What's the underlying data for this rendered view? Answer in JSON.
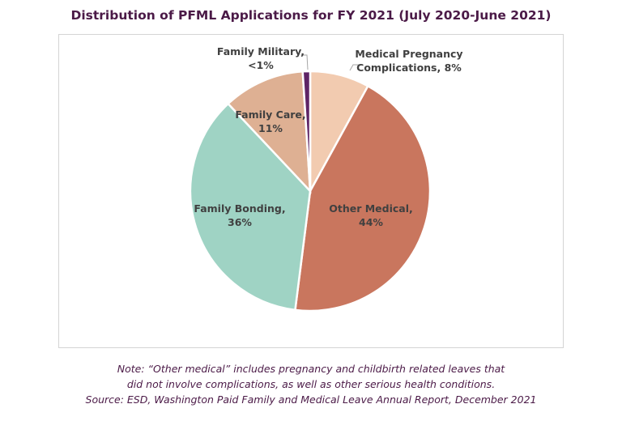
{
  "chart_data": {
    "type": "pie",
    "title": "Distribution of PFML Applications for FY 2021 (July 2020-June 2021)",
    "start_angle": "12 o'clock",
    "direction": "clockwise",
    "slices": [
      {
        "line1": "Medical Pregnancy",
        "line2": "Complications, 8%",
        "value": 8,
        "color": "#f2cbb0"
      },
      {
        "line1": "Other Medical,",
        "line2": "44%",
        "value": 44,
        "color": "#c9765e"
      },
      {
        "line1": "Family Bonding,",
        "line2": "36%",
        "value": 36,
        "color": "#9fd3c4"
      },
      {
        "line1": "Family Care,",
        "line2": "11%",
        "value": 11,
        "color": "#deb093"
      },
      {
        "line1": "Family Military,",
        "line2": "<1%",
        "value": 1,
        "color": "#5e2466"
      }
    ]
  },
  "notes": {
    "line1": "Note: “Other medical” includes pregnancy and childbirth related leaves that",
    "line2": "did not involve complications, as well as other serious health conditions.",
    "source": "Source: ESD, Washington Paid Family and Medical Leave Annual Report, December 2021"
  }
}
